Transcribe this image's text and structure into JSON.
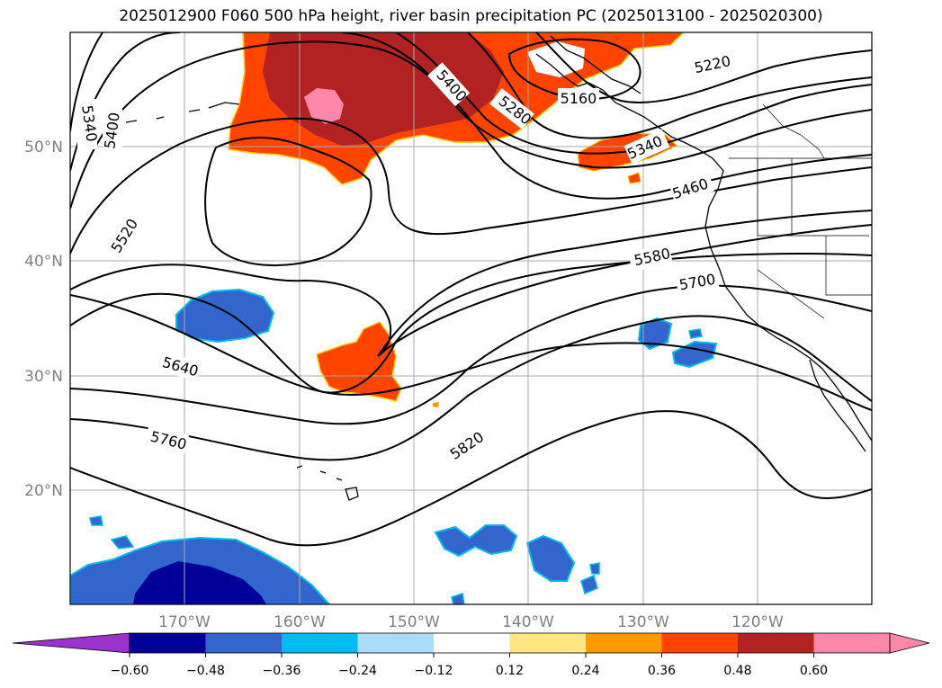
{
  "title": "2025012900 F060 500 hPa height, river basin precipitation PC (2025013100 - 2025020300)",
  "lat_labels": [
    "50°N",
    "40°N",
    "30°N",
    "20°N"
  ],
  "lon_labels": [
    "170°W",
    "160°W",
    "150°W",
    "140°W",
    "130°W",
    "120°W"
  ],
  "contour_labels": [
    "5340",
    "5400",
    "5400",
    "5280",
    "5220",
    "5160",
    "5340",
    "5460",
    "5520",
    "5580",
    "5700",
    "5640",
    "5760",
    "5820"
  ],
  "colorbar": {
    "ticks": [
      "−0.60",
      "−0.48",
      "−0.36",
      "−0.24",
      "−0.12",
      "0.12",
      "0.24",
      "0.36",
      "0.48",
      "0.60"
    ],
    "colors": [
      "#9933cc",
      "#000099",
      "#3366cc",
      "#00bbee",
      "#aaddf8",
      "#ffffff",
      "#ffe680",
      "#ff9900",
      "#ff4400",
      "#b22222",
      "#ff88aa"
    ]
  },
  "chart_data": {
    "type": "map",
    "title": "2025012900 F060 500 hPa height, river basin precipitation PC (2025013100 - 2025020300)",
    "lat_range": [
      10,
      60
    ],
    "lon_range": [
      -180,
      -110
    ],
    "height_contour_levels": [
      5160,
      5220,
      5280,
      5340,
      5400,
      5460,
      5520,
      5580,
      5640,
      5700,
      5760,
      5820
    ],
    "colorbar_levels": [
      -0.6,
      -0.48,
      -0.36,
      -0.24,
      -0.12,
      0.12,
      0.24,
      0.36,
      0.48,
      0.6
    ],
    "grid": true
  }
}
